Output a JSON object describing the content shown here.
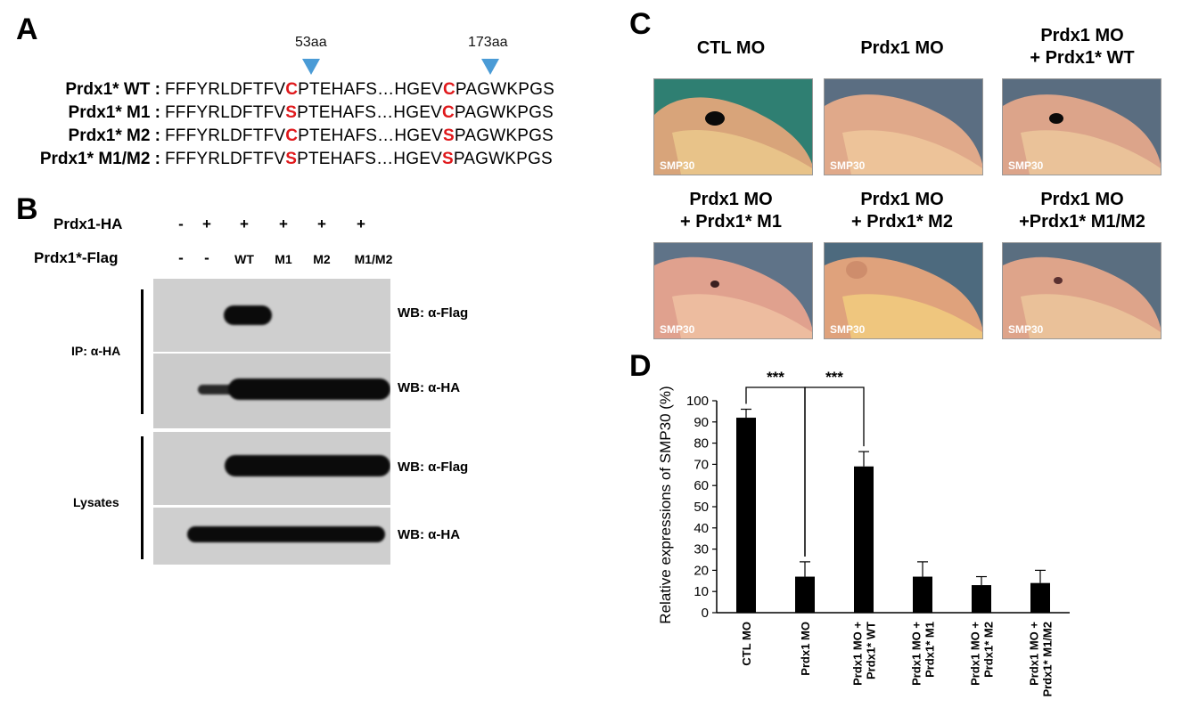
{
  "panels": {
    "a": "A",
    "b": "B",
    "c": "C",
    "d": "D"
  },
  "panel_a": {
    "markers": [
      "53aa",
      "173aa"
    ],
    "rows": [
      {
        "name": "Prdx1* WT",
        "sep": " : ",
        "pre": "FFFYRLDFTFV",
        "r1": "C",
        "mid": "PTEHAFS…HGEV",
        "r2": "C",
        "post": "PAGWKPGS"
      },
      {
        "name": "Prdx1* M1",
        "sep": " : ",
        "pre": "FFFYRLDFTFV",
        "r1": "S",
        "mid": "PTEHAFS…HGEV",
        "r2": "C",
        "post": "PAGWKPGS"
      },
      {
        "name": "Prdx1* M2",
        "sep": " : ",
        "pre": "FFFYRLDFTFV",
        "r1": "C",
        "mid": "PTEHAFS…HGEV",
        "r2": "S",
        "post": "PAGWKPGS"
      },
      {
        "name": "Prdx1* M1/M2",
        "sep": " : ",
        "pre": "FFFYRLDFTFV",
        "r1": "S",
        "mid": "PTEHAFS…HGEV",
        "r2": "S",
        "post": "PAGWKPGS"
      }
    ],
    "highlight_color": "#e0191c",
    "marker_color": "#4a9bd6"
  },
  "panel_b": {
    "row1_label": "Prdx1-HA",
    "row1_values": [
      "-",
      "+",
      "+",
      "+",
      "+",
      "+"
    ],
    "row2_label": "Prdx1*-Flag",
    "row2_values": [
      "-",
      "-",
      "WT",
      "M1",
      "M2",
      "M1/M2"
    ],
    "blot_labels": [
      "WB: α-Flag",
      "WB: α-HA",
      "WB: α-Flag",
      "WB: α-HA"
    ],
    "ip_label": "IP: α-HA",
    "lysates_label": "Lysates"
  },
  "panel_c": {
    "titles": [
      [
        "CTL MO"
      ],
      [
        "Prdx1 MO"
      ],
      [
        "Prdx1 MO",
        "+ Prdx1* WT"
      ],
      [
        "Prdx1 MO",
        "+ Prdx1* M1"
      ],
      [
        "Prdx1 MO",
        "+ Prdx1* M2"
      ],
      [
        "Prdx1 MO",
        "+Prdx1* M1/M2"
      ]
    ],
    "image_label": "SMP30"
  },
  "chart_data": {
    "type": "bar",
    "categories": [
      "CTL MO",
      "Prdx1 MO",
      "Prdx1 MO + Prdx1* WT",
      "Prdx1 MO + Prdx1* M1",
      "Prdx1 MO + Prdx1* M2",
      "Prdx1 MO + Prdx1* M1/M2"
    ],
    "category_lines": [
      [
        "CTL MO"
      ],
      [
        "Prdx1 MO"
      ],
      [
        "Prdx1 MO +",
        "Prdx1* WT"
      ],
      [
        "Prdx1 MO +",
        "Prdx1* M1"
      ],
      [
        "Prdx1 MO +",
        "Prdx1* M2"
      ],
      [
        "Prdx1 MO +",
        "Prdx1* M1/M2"
      ]
    ],
    "values": [
      92,
      17,
      69,
      17,
      13,
      14
    ],
    "errors": [
      4,
      7,
      7,
      7,
      4,
      6
    ],
    "ylabel": "Relative expressions of SMP30 (%)",
    "xlabel": "",
    "ylim": [
      0,
      100
    ],
    "yticks": [
      0,
      10,
      20,
      30,
      40,
      50,
      60,
      70,
      80,
      90,
      100
    ],
    "bar_color": "#000000",
    "grid": false,
    "significance": [
      {
        "from": 0,
        "to": 1,
        "label": "***"
      },
      {
        "from": 1,
        "to": 2,
        "label": "***"
      }
    ]
  }
}
